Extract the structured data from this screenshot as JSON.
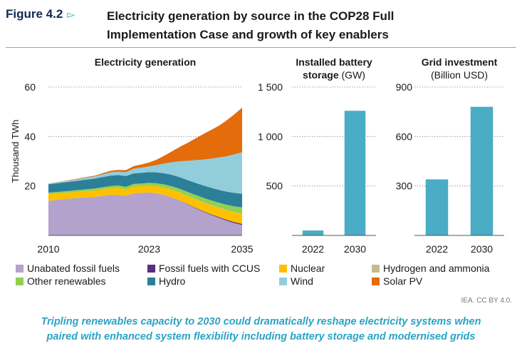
{
  "header": {
    "figure_label": "Figure 4.2",
    "title_line1": "Electricity generation by source in the COP28 Full",
    "title_line2": "Implementation Case and growth of key enablers"
  },
  "colors": {
    "unabated": "#b3a2cc",
    "ccus": "#5b2c83",
    "nuclear": "#ffc000",
    "hydrogen": "#c9b896",
    "other_ren": "#92d050",
    "hydro": "#2c7f98",
    "wind": "#92cddc",
    "solar": "#e46c0a",
    "bars": "#4bacc6",
    "arrow": "#2aa3c4"
  },
  "chart_data": [
    {
      "type": "area",
      "title": "Electricity generation",
      "ylabel": "Thousand TWh",
      "ylim": [
        0,
        60
      ],
      "yticks": [
        20,
        40,
        60
      ],
      "xlim": [
        2010,
        2035
      ],
      "xticks": [
        2010,
        2023,
        2035
      ],
      "x": [
        2010,
        2012,
        2014,
        2016,
        2018,
        2019,
        2020,
        2021,
        2022,
        2023,
        2024,
        2025,
        2026,
        2027,
        2028,
        2029,
        2030,
        2031,
        2032,
        2033,
        2034,
        2035
      ],
      "series": [
        {
          "name": "Unabated fossil fuels",
          "key": "unabated",
          "values": [
            14.0,
            14.7,
            15.2,
            15.6,
            16.4,
            16.4,
            16.0,
            17.0,
            17.2,
            17.4,
            17.0,
            16.3,
            15.3,
            14.0,
            12.5,
            11.0,
            9.6,
            8.3,
            7.1,
            6.0,
            5.0,
            4.2
          ]
        },
        {
          "name": "Fossil fuels with CCUS",
          "key": "ccus",
          "values": [
            0,
            0,
            0,
            0,
            0,
            0,
            0,
            0,
            0,
            0,
            0,
            0,
            0,
            0.05,
            0.1,
            0.15,
            0.2,
            0.25,
            0.3,
            0.35,
            0.4,
            0.45
          ]
        },
        {
          "name": "Nuclear",
          "key": "nuclear",
          "values": [
            2.8,
            2.5,
            2.5,
            2.6,
            2.7,
            2.8,
            2.7,
            2.8,
            2.7,
            2.8,
            2.9,
            3.0,
            3.1,
            3.2,
            3.3,
            3.4,
            3.5,
            3.6,
            3.7,
            3.8,
            3.9,
            4.0
          ]
        },
        {
          "name": "Hydrogen and ammonia",
          "key": "hydrogen",
          "values": [
            0,
            0,
            0,
            0,
            0,
            0,
            0,
            0,
            0,
            0,
            0,
            0,
            0.02,
            0.04,
            0.06,
            0.08,
            0.1,
            0.12,
            0.14,
            0.16,
            0.18,
            0.2
          ]
        },
        {
          "name": "Other renewables",
          "key": "other_ren",
          "values": [
            0.5,
            0.6,
            0.7,
            0.8,
            0.9,
            1.0,
            1.0,
            1.0,
            1.1,
            1.1,
            1.2,
            1.3,
            1.4,
            1.5,
            1.6,
            1.7,
            1.8,
            1.9,
            2.0,
            2.1,
            2.3,
            2.5
          ]
        },
        {
          "name": "Hydro",
          "key": "hydro",
          "values": [
            3.4,
            3.6,
            3.8,
            4.0,
            4.2,
            4.2,
            4.3,
            4.3,
            4.3,
            4.3,
            4.4,
            4.5,
            4.6,
            4.7,
            4.8,
            4.9,
            5.0,
            5.1,
            5.2,
            5.3,
            5.4,
            5.5
          ]
        },
        {
          "name": "Wind",
          "key": "wind",
          "values": [
            0.3,
            0.5,
            0.7,
            0.9,
            1.3,
            1.4,
            1.6,
            1.9,
            2.1,
            2.3,
            3.0,
            4.0,
            5.2,
            6.5,
            7.8,
            9.2,
            10.5,
            11.8,
            13.1,
            14.3,
            15.6,
            16.8
          ]
        },
        {
          "name": "Solar PV",
          "key": "solar",
          "values": [
            0.0,
            0.1,
            0.2,
            0.3,
            0.6,
            0.7,
            0.8,
            1.0,
            1.3,
            1.6,
            2.2,
            3.2,
            4.5,
            5.9,
            7.3,
            8.8,
            10.3,
            11.6,
            12.8,
            14.5,
            16.2,
            18.0
          ]
        }
      ]
    },
    {
      "type": "bar",
      "title_line1": "Installed battery",
      "title_line2_bold": "storage",
      "title_line2_unit": "(GW)",
      "categories": [
        "2022",
        "2030"
      ],
      "values": [
        50,
        1260
      ],
      "ylim": [
        0,
        1500
      ],
      "yticks": [
        500,
        1000,
        1500
      ],
      "ytick_labels": [
        "500",
        "1 000",
        "1 500"
      ]
    },
    {
      "type": "bar",
      "title_line1": "Grid investment",
      "title_line2_unit": "(Billion USD)",
      "categories": [
        "2022",
        "2030"
      ],
      "values": [
        340,
        780
      ],
      "ylim": [
        0,
        900
      ],
      "yticks": [
        300,
        600,
        900
      ],
      "ytick_labels": [
        "300",
        "600",
        "900"
      ]
    }
  ],
  "source": "IEA. CC BY 4.0.",
  "caption_line1": "Tripling renewables capacity to 2030 could dramatically reshape electricity systems when",
  "caption_line2": "paired with enhanced system flexibility including battery storage and modernised grids"
}
